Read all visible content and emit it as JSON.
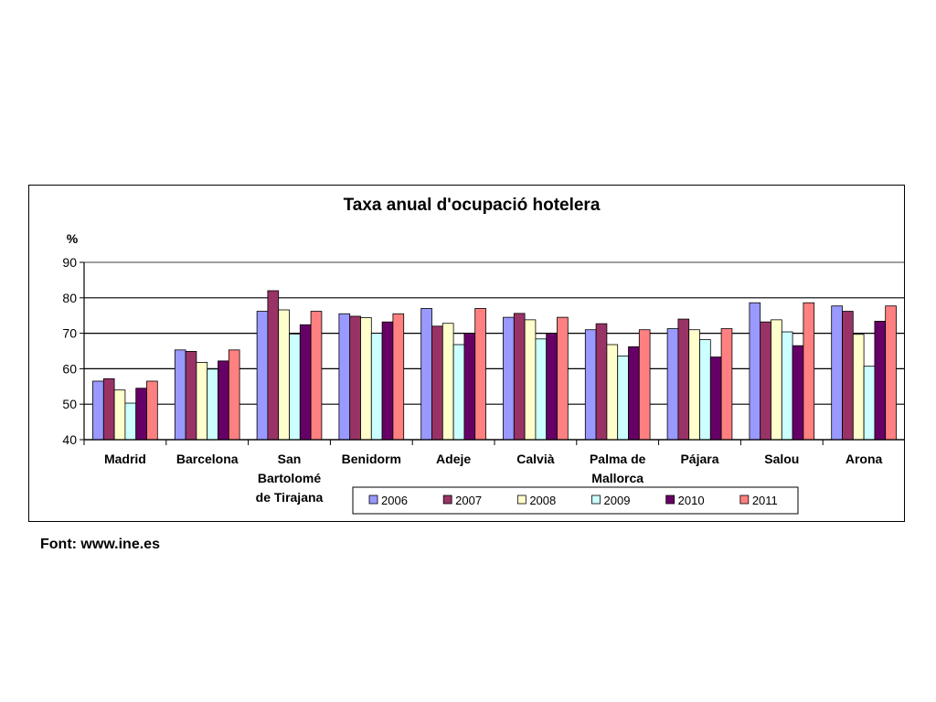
{
  "source_note": "Font: www.ine.es",
  "chart_data": {
    "type": "bar",
    "title": "Taxa anual d'ocupació hotelera",
    "ylabel": "%",
    "xlabel": "",
    "ylim": [
      40,
      90
    ],
    "yticks": [
      40,
      50,
      60,
      70,
      80,
      90
    ],
    "grid": true,
    "legend_position": "bottom",
    "categories": [
      "Madrid",
      "Barcelona",
      "San Bartolomé de Tirajana",
      "Benidorm",
      "Adeje",
      "Calvià",
      "Palma de Mallorca",
      "Pájara",
      "Salou",
      "Arona"
    ],
    "category_lines": [
      [
        "Madrid"
      ],
      [
        "Barcelona"
      ],
      [
        "San",
        "Bartolomé",
        "de Tirajana"
      ],
      [
        "Benidorm"
      ],
      [
        "Adeje"
      ],
      [
        "Calvià"
      ],
      [
        "Palma de",
        "Mallorca"
      ],
      [
        "Pájara"
      ],
      [
        "Salou"
      ],
      [
        "Arona"
      ]
    ],
    "series": [
      {
        "name": "2006",
        "color": "#9999FF",
        "values": [
          56.5,
          65.3,
          76.2,
          75.5,
          77.0,
          74.5,
          71.0,
          71.3,
          78.6,
          77.7
        ]
      },
      {
        "name": "2007",
        "color": "#993366",
        "values": [
          57.2,
          64.9,
          82.0,
          74.8,
          72.0,
          75.6,
          72.7,
          74.0,
          73.2,
          76.2
        ]
      },
      {
        "name": "2008",
        "color": "#FFFFCC",
        "values": [
          54.0,
          61.8,
          76.6,
          74.4,
          72.8,
          73.8,
          66.8,
          71.0,
          73.8,
          69.7
        ]
      },
      {
        "name": "2009",
        "color": "#CCFFFF",
        "values": [
          50.3,
          59.9,
          69.8,
          70.0,
          66.8,
          68.4,
          63.6,
          68.2,
          70.4,
          60.7
        ]
      },
      {
        "name": "2010",
        "color": "#660066",
        "values": [
          54.5,
          62.2,
          72.4,
          73.2,
          70.0,
          70.0,
          66.2,
          63.3,
          66.5,
          73.4
        ]
      },
      {
        "name": "2011",
        "color": "#FF8080",
        "values": [
          56.5,
          65.3,
          76.2,
          75.5,
          77.0,
          74.5,
          71.0,
          71.3,
          78.6,
          77.7
        ]
      }
    ]
  }
}
